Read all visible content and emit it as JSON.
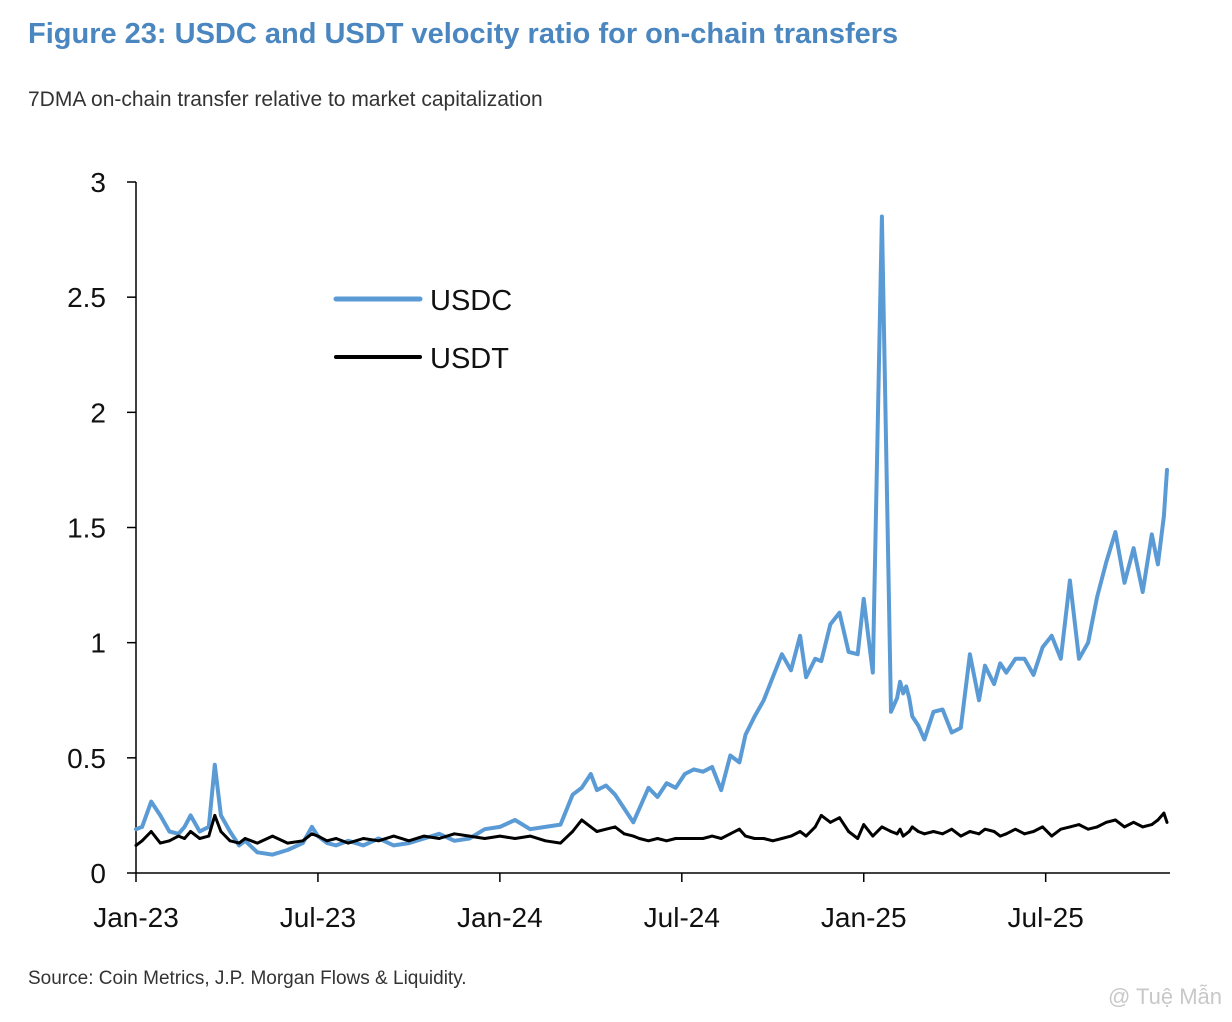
{
  "header": {
    "title": "Figure 23: USDC and USDT velocity ratio for on-chain transfers",
    "subtitle": "7DMA on-chain transfer relative to market capitalization"
  },
  "footer": {
    "source": "Source: Coin Metrics, J.P. Morgan Flows & Liquidity.",
    "watermark": "@ Tuệ Mẫn"
  },
  "colors": {
    "usdc": "#5b9bd5",
    "usdt": "#000000",
    "title": "#4a86bf",
    "axis": "#000000"
  },
  "chart_data": {
    "type": "line",
    "title": "USDC and USDT velocity ratio for on-chain transfers",
    "xlabel": "",
    "ylabel": "",
    "ylim": [
      0,
      3
    ],
    "yticks": [
      0,
      0.5,
      1,
      1.5,
      2,
      2.5,
      3
    ],
    "ytick_labels": [
      "0",
      "0.5",
      "1",
      "1.5",
      "2",
      "2.5",
      "3"
    ],
    "xlim": [
      0,
      34.1
    ],
    "xticks": [
      0,
      6,
      12,
      18,
      24,
      30
    ],
    "xtick_labels": [
      "Jan-23",
      "Jul-23",
      "Jan-24",
      "Jul-24",
      "Jan-25",
      "Jul-25"
    ],
    "x_unit": "months since Jan-2023",
    "legend": {
      "placement": "upper-left",
      "entries": [
        "USDC",
        "USDT"
      ]
    },
    "series": [
      {
        "name": "USDC",
        "x": [
          0,
          0.2,
          0.5,
          0.8,
          1.1,
          1.4,
          1.6,
          1.8,
          2.1,
          2.4,
          2.6,
          2.8,
          3.1,
          3.4,
          3.6,
          4.0,
          4.5,
          5.0,
          5.5,
          5.8,
          6.0,
          6.3,
          6.6,
          7.0,
          7.5,
          8.0,
          8.5,
          9.0,
          9.5,
          10.0,
          10.5,
          11.0,
          11.5,
          12.0,
          12.5,
          13.0,
          13.5,
          14.0,
          14.4,
          14.7,
          15.0,
          15.2,
          15.5,
          15.8,
          16.1,
          16.4,
          16.6,
          16.9,
          17.2,
          17.5,
          17.8,
          18.1,
          18.4,
          18.7,
          19.0,
          19.3,
          19.6,
          19.9,
          20.1,
          20.4,
          20.7,
          21.0,
          21.3,
          21.6,
          21.9,
          22.1,
          22.4,
          22.6,
          22.9,
          23.2,
          23.5,
          23.8,
          24.0,
          24.3,
          24.6,
          24.9,
          25.1,
          25.2,
          25.3,
          25.4,
          25.5,
          25.6,
          25.8,
          26.0,
          26.3,
          26.6,
          26.9,
          27.2,
          27.5,
          27.8,
          28.0,
          28.3,
          28.5,
          28.7,
          29.0,
          29.3,
          29.6,
          29.9,
          30.2,
          30.5,
          30.8,
          31.1,
          31.4,
          31.7,
          32.0,
          32.3,
          32.6,
          32.9,
          33.2,
          33.5,
          33.7,
          33.9,
          34.0
        ],
        "values": [
          0.19,
          0.2,
          0.31,
          0.25,
          0.18,
          0.17,
          0.2,
          0.25,
          0.18,
          0.2,
          0.47,
          0.25,
          0.18,
          0.12,
          0.14,
          0.09,
          0.08,
          0.1,
          0.13,
          0.2,
          0.16,
          0.13,
          0.12,
          0.14,
          0.12,
          0.15,
          0.12,
          0.13,
          0.15,
          0.17,
          0.14,
          0.15,
          0.19,
          0.2,
          0.23,
          0.19,
          0.2,
          0.21,
          0.34,
          0.37,
          0.43,
          0.36,
          0.38,
          0.34,
          0.28,
          0.22,
          0.28,
          0.37,
          0.33,
          0.39,
          0.37,
          0.43,
          0.45,
          0.44,
          0.46,
          0.36,
          0.51,
          0.48,
          0.6,
          0.68,
          0.75,
          0.85,
          0.95,
          0.88,
          1.03,
          0.85,
          0.93,
          0.92,
          1.08,
          1.13,
          0.96,
          0.95,
          1.19,
          0.87,
          2.85,
          0.7,
          0.76,
          0.83,
          0.78,
          0.81,
          0.76,
          0.68,
          0.64,
          0.58,
          0.7,
          0.71,
          0.61,
          0.63,
          0.95,
          0.75,
          0.9,
          0.82,
          0.91,
          0.87,
          0.93,
          0.93,
          0.86,
          0.98,
          1.03,
          0.93,
          1.27,
          0.93,
          1.0,
          1.2,
          1.35,
          1.48,
          1.26,
          1.41,
          1.22,
          1.47,
          1.34,
          1.55,
          1.75
        ],
        "color": "#5b9bd5"
      },
      {
        "name": "USDT",
        "x": [
          0,
          0.2,
          0.5,
          0.8,
          1.1,
          1.4,
          1.6,
          1.8,
          2.1,
          2.4,
          2.6,
          2.8,
          3.1,
          3.4,
          3.6,
          4.0,
          4.5,
          5.0,
          5.5,
          5.8,
          6.0,
          6.3,
          6.6,
          7.0,
          7.5,
          8.0,
          8.5,
          9.0,
          9.5,
          10.0,
          10.5,
          11.0,
          11.5,
          12.0,
          12.5,
          13.0,
          13.5,
          14.0,
          14.4,
          14.7,
          15.0,
          15.2,
          15.5,
          15.8,
          16.1,
          16.4,
          16.6,
          16.9,
          17.2,
          17.5,
          17.8,
          18.1,
          18.4,
          18.7,
          19.0,
          19.3,
          19.6,
          19.9,
          20.1,
          20.4,
          20.7,
          21.0,
          21.3,
          21.6,
          21.9,
          22.1,
          22.4,
          22.6,
          22.9,
          23.2,
          23.5,
          23.8,
          24.0,
          24.3,
          24.6,
          24.9,
          25.1,
          25.2,
          25.3,
          25.4,
          25.5,
          25.6,
          25.8,
          26.0,
          26.3,
          26.6,
          26.9,
          27.2,
          27.5,
          27.8,
          28.0,
          28.3,
          28.5,
          28.7,
          29.0,
          29.3,
          29.6,
          29.9,
          30.2,
          30.5,
          30.8,
          31.1,
          31.4,
          31.7,
          32.0,
          32.3,
          32.6,
          32.9,
          33.2,
          33.5,
          33.7,
          33.9,
          34.0
        ],
        "values": [
          0.12,
          0.14,
          0.18,
          0.13,
          0.14,
          0.16,
          0.15,
          0.18,
          0.15,
          0.16,
          0.25,
          0.18,
          0.14,
          0.13,
          0.15,
          0.13,
          0.16,
          0.13,
          0.14,
          0.17,
          0.16,
          0.14,
          0.15,
          0.13,
          0.15,
          0.14,
          0.16,
          0.14,
          0.16,
          0.15,
          0.17,
          0.16,
          0.15,
          0.16,
          0.15,
          0.16,
          0.14,
          0.13,
          0.18,
          0.23,
          0.2,
          0.18,
          0.19,
          0.2,
          0.17,
          0.16,
          0.15,
          0.14,
          0.15,
          0.14,
          0.15,
          0.15,
          0.15,
          0.15,
          0.16,
          0.15,
          0.17,
          0.19,
          0.16,
          0.15,
          0.15,
          0.14,
          0.15,
          0.16,
          0.18,
          0.16,
          0.2,
          0.25,
          0.22,
          0.24,
          0.18,
          0.15,
          0.21,
          0.16,
          0.2,
          0.18,
          0.17,
          0.19,
          0.16,
          0.17,
          0.18,
          0.2,
          0.18,
          0.17,
          0.18,
          0.17,
          0.19,
          0.16,
          0.18,
          0.17,
          0.19,
          0.18,
          0.16,
          0.17,
          0.19,
          0.17,
          0.18,
          0.2,
          0.16,
          0.19,
          0.2,
          0.21,
          0.19,
          0.2,
          0.22,
          0.23,
          0.2,
          0.22,
          0.2,
          0.21,
          0.23,
          0.26,
          0.22
        ],
        "color": "#000000"
      }
    ]
  }
}
